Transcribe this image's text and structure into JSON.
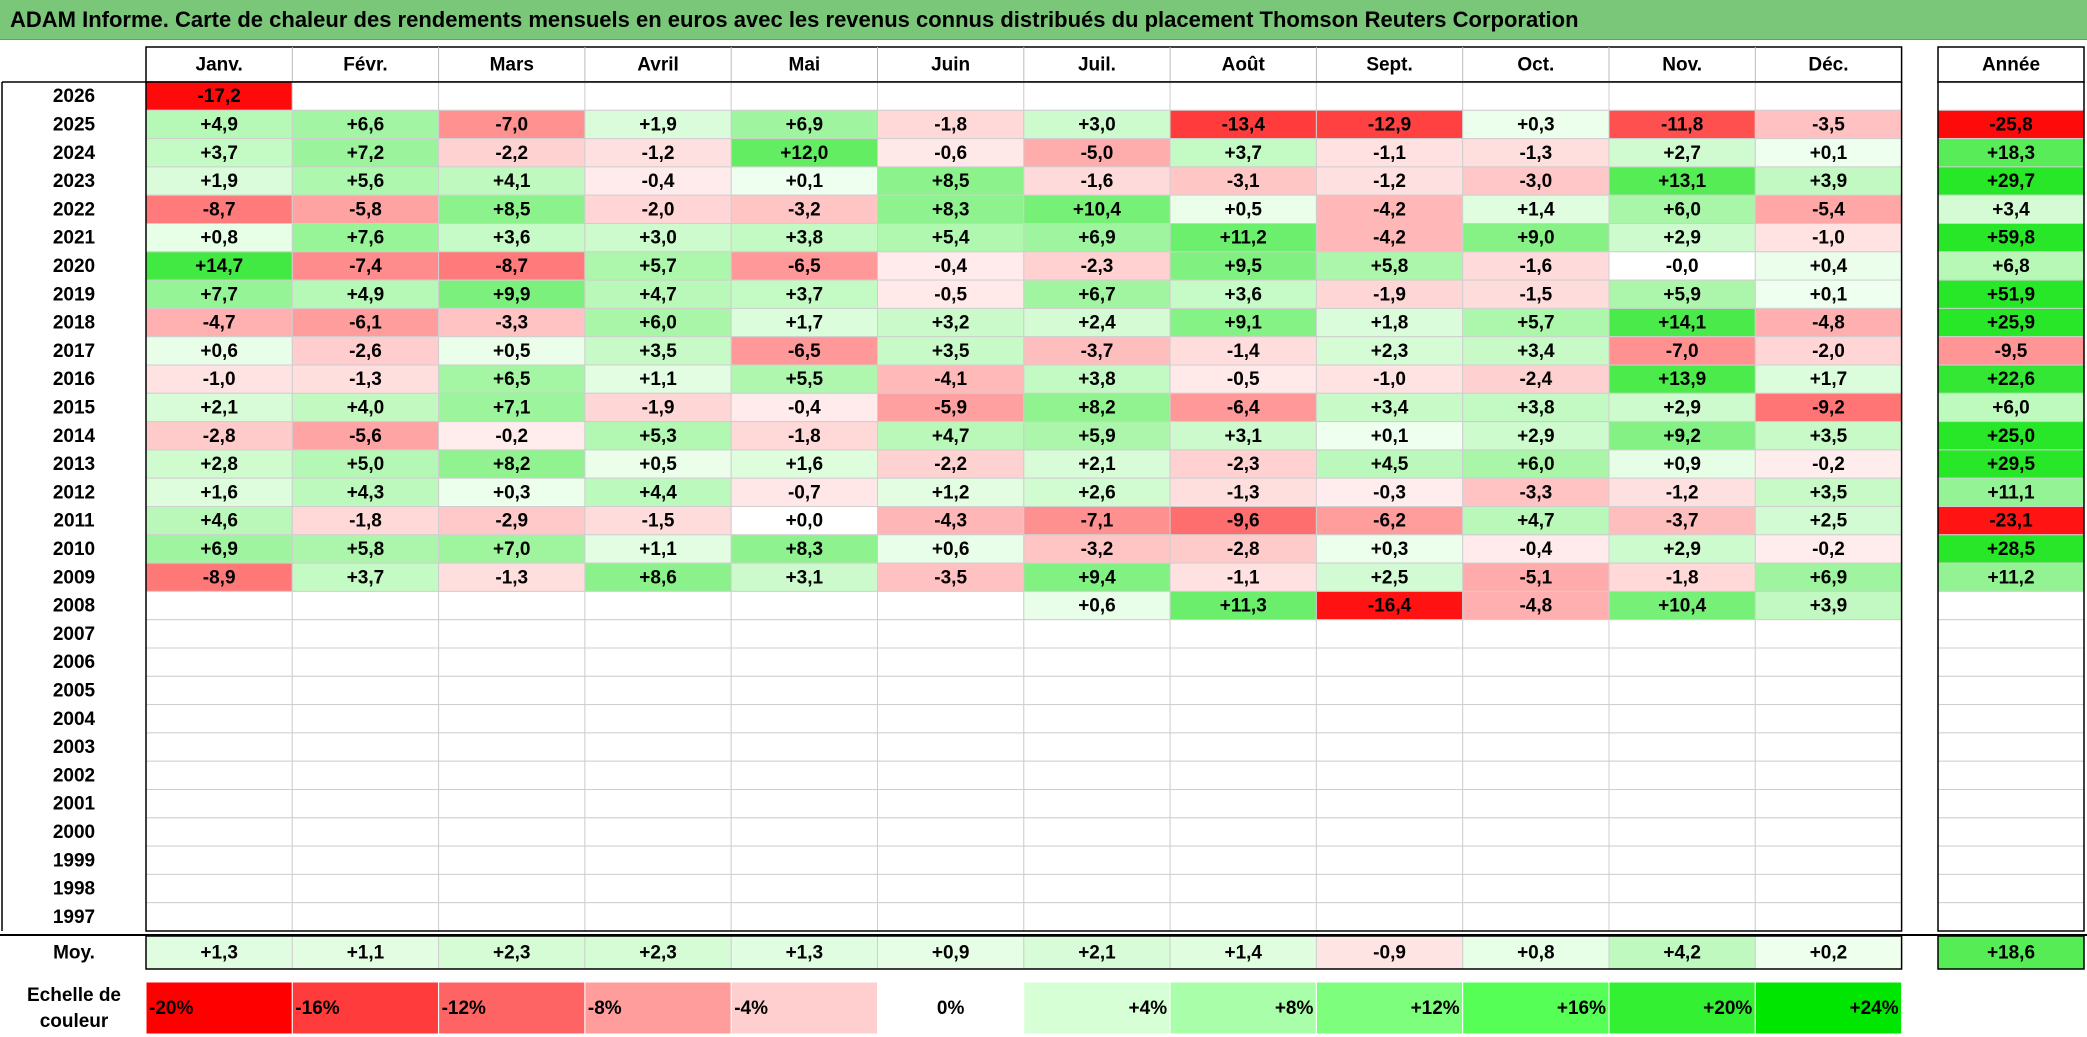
{
  "title": "ADAM Informe. Carte de chaleur des rendements mensuels en euros avec les revenus connus distribués du placement Thomson Reuters Corporation",
  "colors": {
    "title_bg": "#7ac77a",
    "negative_max": "#ff0000",
    "neutral": "#ffffff",
    "positive_max": "#00e600"
  },
  "chart_data": {
    "type": "heatmap",
    "title": "ADAM Informe. Carte de chaleur des rendements mensuels en euros avec les revenus connus distribués du placement Thomson Reuters Corporation",
    "months": [
      "Janv.",
      "Févr.",
      "Mars",
      "Avril",
      "Mai",
      "Juin",
      "Juil.",
      "Août",
      "Sept.",
      "Oct.",
      "Nov.",
      "Déc."
    ],
    "year_header": "Année",
    "avg_label": "Moy.",
    "scale_label": "Echelle de couleur",
    "rows": [
      {
        "year": "2026",
        "values": [
          "-17,2",
          "",
          "",
          "",
          "",
          "",
          "",
          "",
          "",
          "",
          "",
          ""
        ],
        "annual": ""
      },
      {
        "year": "2025",
        "values": [
          "+4,9",
          "+6,6",
          "-7,0",
          "+1,9",
          "+6,9",
          "-1,8",
          "+3,0",
          "-13,4",
          "-12,9",
          "+0,3",
          "-11,8",
          "-3,5"
        ],
        "annual": "-25,8"
      },
      {
        "year": "2024",
        "values": [
          "+3,7",
          "+7,2",
          "-2,2",
          "-1,2",
          "+12,0",
          "-0,6",
          "-5,0",
          "+3,7",
          "-1,1",
          "-1,3",
          "+2,7",
          "+0,1"
        ],
        "annual": "+18,3"
      },
      {
        "year": "2023",
        "values": [
          "+1,9",
          "+5,6",
          "+4,1",
          "-0,4",
          "+0,1",
          "+8,5",
          "-1,6",
          "-3,1",
          "-1,2",
          "-3,0",
          "+13,1",
          "+3,9"
        ],
        "annual": "+29,7"
      },
      {
        "year": "2022",
        "values": [
          "-8,7",
          "-5,8",
          "+8,5",
          "-2,0",
          "-3,2",
          "+8,3",
          "+10,4",
          "+0,5",
          "-4,2",
          "+1,4",
          "+6,0",
          "-5,4"
        ],
        "annual": "+3,4"
      },
      {
        "year": "2021",
        "values": [
          "+0,8",
          "+7,6",
          "+3,6",
          "+3,0",
          "+3,8",
          "+5,4",
          "+6,9",
          "+11,2",
          "-4,2",
          "+9,0",
          "+2,9",
          "-1,0"
        ],
        "annual": "+59,8"
      },
      {
        "year": "2020",
        "values": [
          "+14,7",
          "-7,4",
          "-8,7",
          "+5,7",
          "-6,5",
          "-0,4",
          "-2,3",
          "+9,5",
          "+5,8",
          "-1,6",
          "-0,0",
          "+0,4"
        ],
        "annual": "+6,8"
      },
      {
        "year": "2019",
        "values": [
          "+7,7",
          "+4,9",
          "+9,9",
          "+4,7",
          "+3,7",
          "-0,5",
          "+6,7",
          "+3,6",
          "-1,9",
          "-1,5",
          "+5,9",
          "+0,1"
        ],
        "annual": "+51,9"
      },
      {
        "year": "2018",
        "values": [
          "-4,7",
          "-6,1",
          "-3,3",
          "+6,0",
          "+1,7",
          "+3,2",
          "+2,4",
          "+9,1",
          "+1,8",
          "+5,7",
          "+14,1",
          "-4,8"
        ],
        "annual": "+25,9"
      },
      {
        "year": "2017",
        "values": [
          "+0,6",
          "-2,6",
          "+0,5",
          "+3,5",
          "-6,5",
          "+3,5",
          "-3,7",
          "-1,4",
          "+2,3",
          "+3,4",
          "-7,0",
          "-2,0"
        ],
        "annual": "-9,5"
      },
      {
        "year": "2016",
        "values": [
          "-1,0",
          "-1,3",
          "+6,5",
          "+1,1",
          "+5,5",
          "-4,1",
          "+3,8",
          "-0,5",
          "-1,0",
          "-2,4",
          "+13,9",
          "+1,7"
        ],
        "annual": "+22,6"
      },
      {
        "year": "2015",
        "values": [
          "+2,1",
          "+4,0",
          "+7,1",
          "-1,9",
          "-0,4",
          "-5,9",
          "+8,2",
          "-6,4",
          "+3,4",
          "+3,8",
          "+2,9",
          "-9,2"
        ],
        "annual": "+6,0"
      },
      {
        "year": "2014",
        "values": [
          "-2,8",
          "-5,6",
          "-0,2",
          "+5,3",
          "-1,8",
          "+4,7",
          "+5,9",
          "+3,1",
          "+0,1",
          "+2,9",
          "+9,2",
          "+3,5"
        ],
        "annual": "+25,0"
      },
      {
        "year": "2013",
        "values": [
          "+2,8",
          "+5,0",
          "+8,2",
          "+0,5",
          "+1,6",
          "-2,2",
          "+2,1",
          "-2,3",
          "+4,5",
          "+6,0",
          "+0,9",
          "-0,2"
        ],
        "annual": "+29,5"
      },
      {
        "year": "2012",
        "values": [
          "+1,6",
          "+4,3",
          "+0,3",
          "+4,4",
          "-0,7",
          "+1,2",
          "+2,6",
          "-1,3",
          "-0,3",
          "-3,3",
          "-1,2",
          "+3,5"
        ],
        "annual": "+11,1"
      },
      {
        "year": "2011",
        "values": [
          "+4,6",
          "-1,8",
          "-2,9",
          "-1,5",
          "+0,0",
          "-4,3",
          "-7,1",
          "-9,6",
          "-6,2",
          "+4,7",
          "-3,7",
          "+2,5"
        ],
        "annual": "-23,1"
      },
      {
        "year": "2010",
        "values": [
          "+6,9",
          "+5,8",
          "+7,0",
          "+1,1",
          "+8,3",
          "+0,6",
          "-3,2",
          "-2,8",
          "+0,3",
          "-0,4",
          "+2,9",
          "-0,2"
        ],
        "annual": "+28,5"
      },
      {
        "year": "2009",
        "values": [
          "-8,9",
          "+3,7",
          "-1,3",
          "+8,6",
          "+3,1",
          "-3,5",
          "+9,4",
          "-1,1",
          "+2,5",
          "-5,1",
          "-1,8",
          "+6,9"
        ],
        "annual": "+11,2"
      },
      {
        "year": "2008",
        "values": [
          "",
          "",
          "",
          "",
          "",
          "",
          "+0,6",
          "+11,3",
          "-16,4",
          "-4,8",
          "+10,4",
          "+3,9"
        ],
        "annual": ""
      },
      {
        "year": "2007",
        "values": [
          "",
          "",
          "",
          "",
          "",
          "",
          "",
          "",
          "",
          "",
          "",
          ""
        ],
        "annual": ""
      },
      {
        "year": "2006",
        "values": [
          "",
          "",
          "",
          "",
          "",
          "",
          "",
          "",
          "",
          "",
          "",
          ""
        ],
        "annual": ""
      },
      {
        "year": "2005",
        "values": [
          "",
          "",
          "",
          "",
          "",
          "",
          "",
          "",
          "",
          "",
          "",
          ""
        ],
        "annual": ""
      },
      {
        "year": "2004",
        "values": [
          "",
          "",
          "",
          "",
          "",
          "",
          "",
          "",
          "",
          "",
          "",
          ""
        ],
        "annual": ""
      },
      {
        "year": "2003",
        "values": [
          "",
          "",
          "",
          "",
          "",
          "",
          "",
          "",
          "",
          "",
          "",
          ""
        ],
        "annual": ""
      },
      {
        "year": "2002",
        "values": [
          "",
          "",
          "",
          "",
          "",
          "",
          "",
          "",
          "",
          "",
          "",
          ""
        ],
        "annual": ""
      },
      {
        "year": "2001",
        "values": [
          "",
          "",
          "",
          "",
          "",
          "",
          "",
          "",
          "",
          "",
          "",
          ""
        ],
        "annual": ""
      },
      {
        "year": "2000",
        "values": [
          "",
          "",
          "",
          "",
          "",
          "",
          "",
          "",
          "",
          "",
          "",
          ""
        ],
        "annual": ""
      },
      {
        "year": "1999",
        "values": [
          "",
          "",
          "",
          "",
          "",
          "",
          "",
          "",
          "",
          "",
          "",
          ""
        ],
        "annual": ""
      },
      {
        "year": "1998",
        "values": [
          "",
          "",
          "",
          "",
          "",
          "",
          "",
          "",
          "",
          "",
          "",
          ""
        ],
        "annual": ""
      },
      {
        "year": "1997",
        "values": [
          "",
          "",
          "",
          "",
          "",
          "",
          "",
          "",
          "",
          "",
          "",
          ""
        ],
        "annual": ""
      }
    ],
    "averages": [
      "+1,3",
      "+1,1",
      "+2,3",
      "+2,3",
      "+1,3",
      "+0,9",
      "+2,1",
      "+1,4",
      "-0,9",
      "+0,8",
      "+4,2",
      "+0,2"
    ],
    "annual_average": "+18,6",
    "scale": [
      {
        "label": "-20%",
        "value": -20,
        "color": "#ff0000"
      },
      {
        "label": "-16%",
        "value": -16,
        "color": "#ff3b3b"
      },
      {
        "label": "-12%",
        "value": -12,
        "color": "#ff6464"
      },
      {
        "label": "-8%",
        "value": -8,
        "color": "#ff9c9c"
      },
      {
        "label": "-4%",
        "value": -4,
        "color": "#ffcfcf"
      },
      {
        "label": "0%",
        "value": 0,
        "color": "#ffffff"
      },
      {
        "label": "+4%",
        "value": 4,
        "color": "#d6ffd6"
      },
      {
        "label": "+8%",
        "value": 8,
        "color": "#a9ffa9"
      },
      {
        "label": "+12%",
        "value": 12,
        "color": "#7dff7d"
      },
      {
        "label": "+16%",
        "value": 16,
        "color": "#55ff55"
      },
      {
        "label": "+20%",
        "value": 20,
        "color": "#33f033"
      },
      {
        "label": "+24%",
        "value": 24,
        "color": "#00e600"
      }
    ]
  }
}
